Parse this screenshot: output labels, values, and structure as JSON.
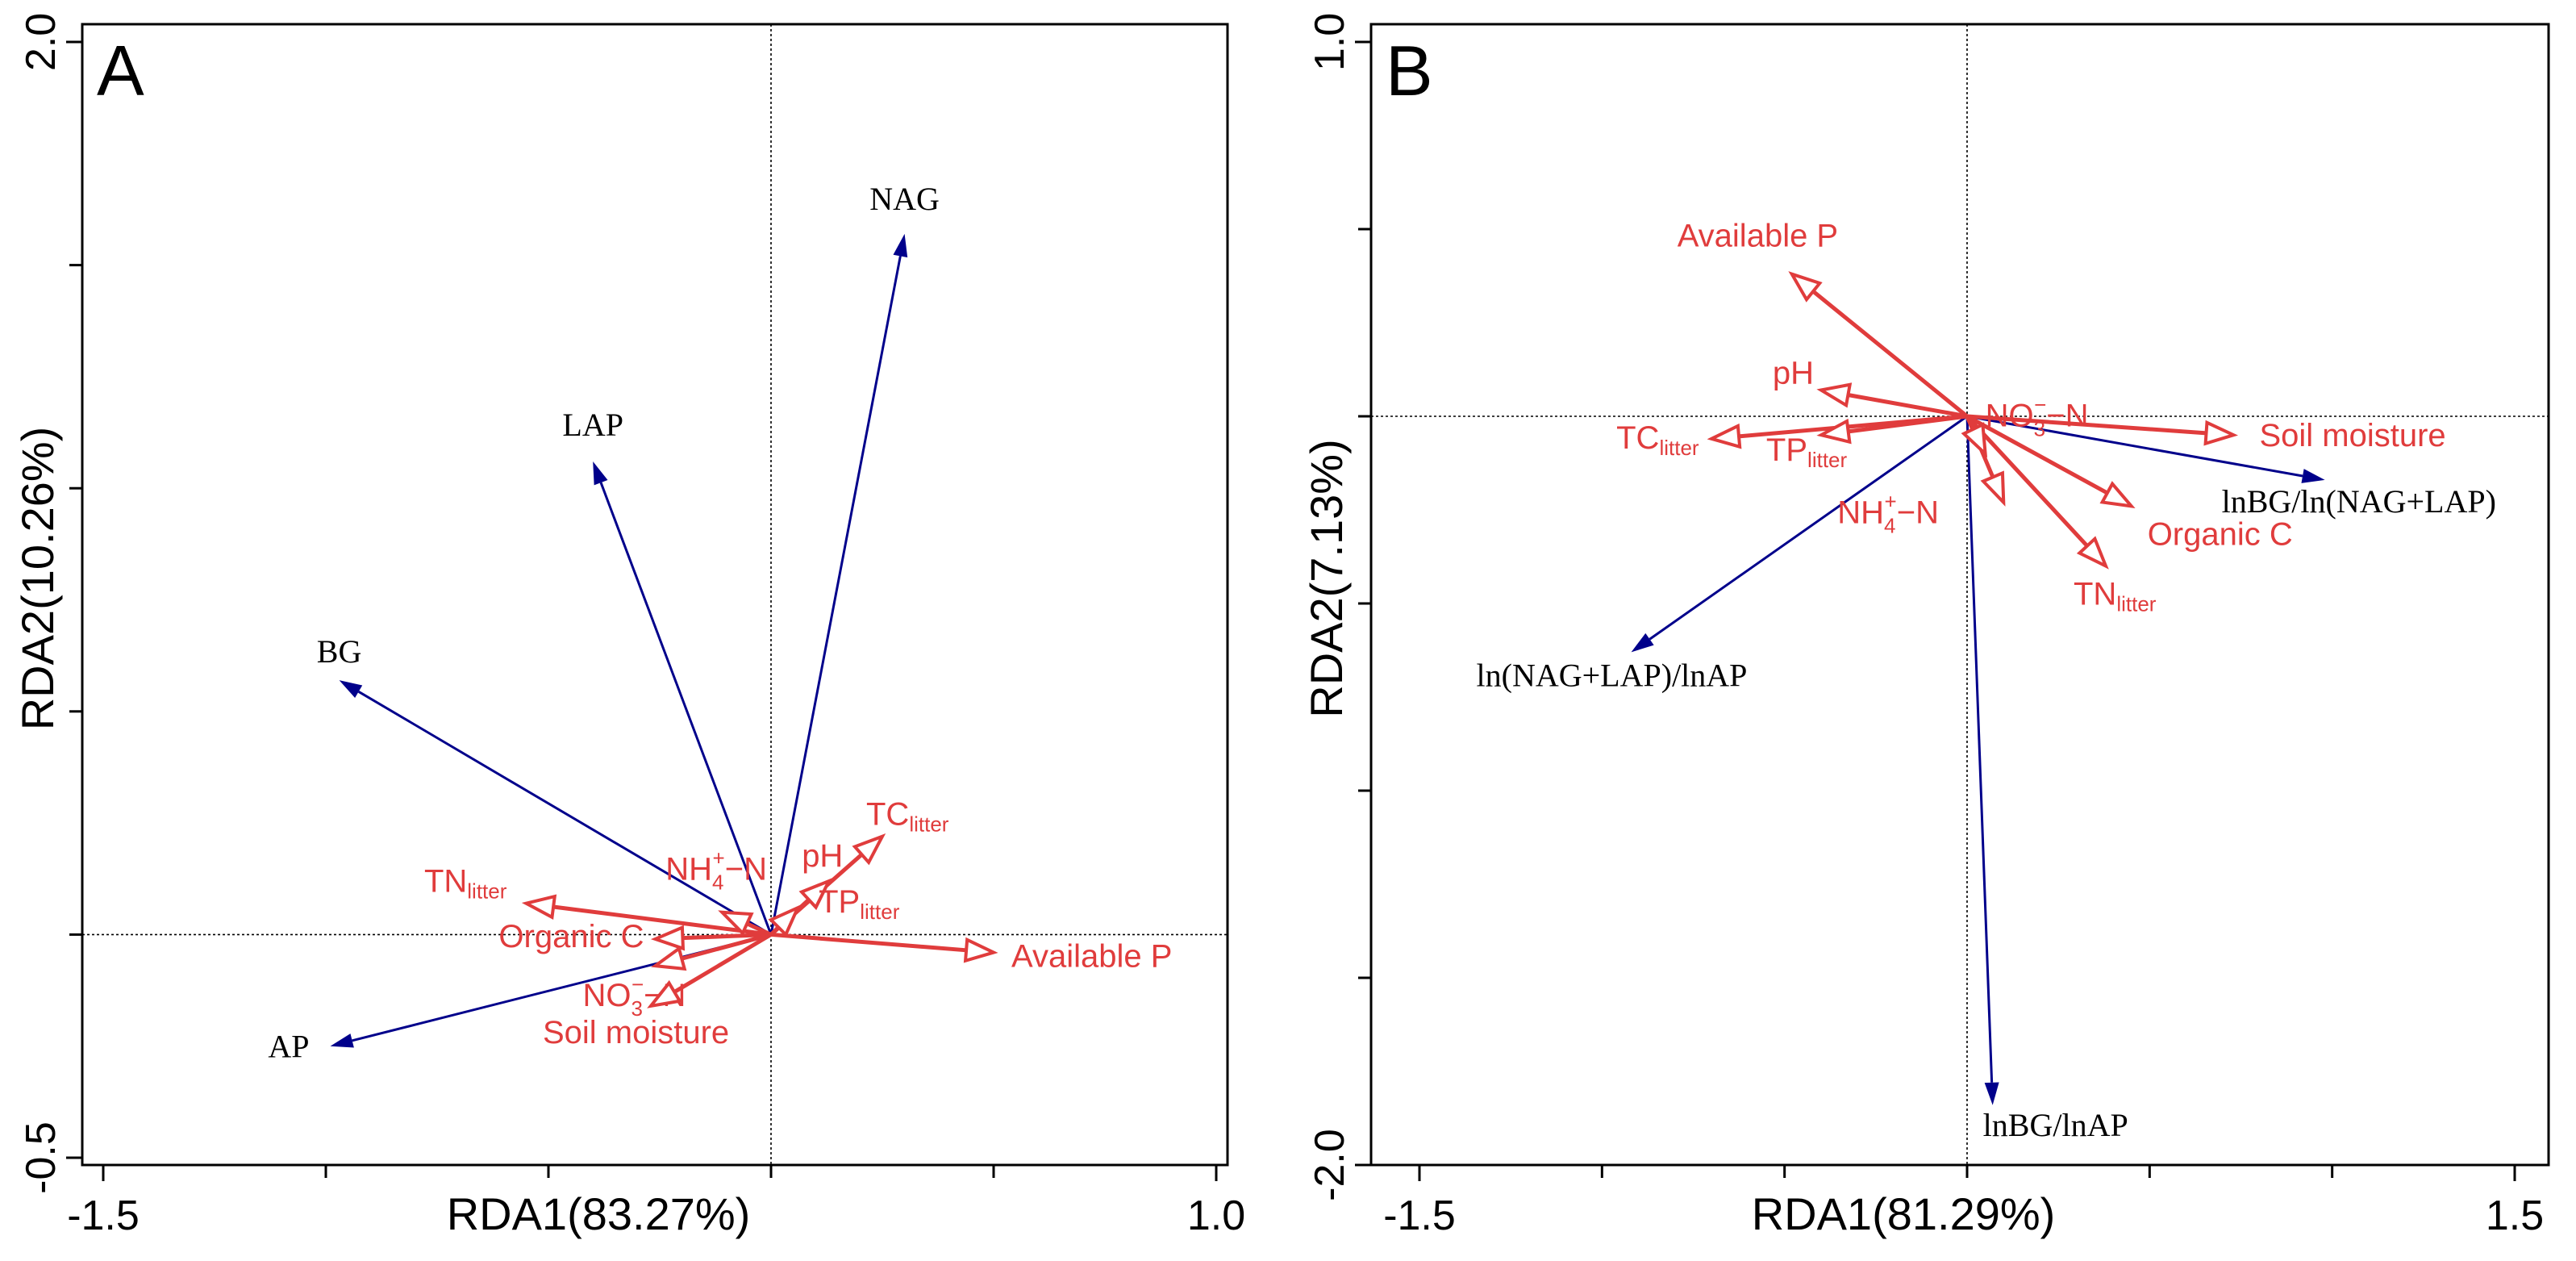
{
  "chart_data": [
    {
      "type": "biplot",
      "panel_label": "A",
      "xlabel": "RDA1(83.27%)",
      "ylabel": "RDA2(10.26%)",
      "xlim": [
        -1.5,
        1.0
      ],
      "ylim": [
        -0.5,
        2.0
      ],
      "x_tick_labels": [
        "-1.5",
        "1.0"
      ],
      "y_tick_labels": [
        "-0.5",
        "2.0"
      ],
      "colors": {
        "response": "#00008B",
        "explanatory": "#E03C3C"
      },
      "response_vectors": [
        {
          "name": "NAG",
          "x": 0.3,
          "y": 1.57
        },
        {
          "name": "LAP",
          "x": -0.4,
          "y": 1.06
        },
        {
          "name": "BG",
          "x": -0.97,
          "y": 0.57
        },
        {
          "name": "AP",
          "x": -0.99,
          "y": -0.25
        }
      ],
      "explanatory_vectors": [
        {
          "name": "TC",
          "sub": "litter",
          "x": 0.25,
          "y": 0.22
        },
        {
          "name": "pH",
          "sub": "",
          "x": 0.13,
          "y": 0.12
        },
        {
          "name": "TP",
          "sub": "litter",
          "x": 0.06,
          "y": 0.06
        },
        {
          "name": "Available P",
          "sub": "",
          "x": 0.5,
          "y": -0.04
        },
        {
          "name": "TN",
          "sub": "litter",
          "x": -0.55,
          "y": 0.07
        },
        {
          "name": "Organic C",
          "sub": "",
          "x": -0.26,
          "y": -0.01
        },
        {
          "name": "NH4+-N",
          "sub": "",
          "x": -0.11,
          "y": 0.05
        },
        {
          "name": "NO3--N",
          "sub": "",
          "x": -0.26,
          "y": -0.07
        },
        {
          "name": "Soil moisture",
          "sub": "",
          "x": -0.27,
          "y": -0.16
        }
      ]
    },
    {
      "type": "biplot",
      "panel_label": "B",
      "xlabel": "RDA1(81.29%)",
      "ylabel": "RDA2(7.13%)",
      "xlim": [
        -1.5,
        1.5
      ],
      "ylim": [
        -2.0,
        1.0
      ],
      "x_tick_labels": [
        "-1.5",
        "1.5"
      ],
      "y_tick_labels": [
        "-2.0",
        "1.0"
      ],
      "colors": {
        "response": "#00008B",
        "explanatory": "#E03C3C"
      },
      "response_vectors": [
        {
          "name": "lnBG/ln(NAG+LAP)",
          "x": 0.98,
          "y": -0.17
        },
        {
          "name": "ln(NAG+LAP)/lnAP",
          "x": -0.92,
          "y": -0.63
        },
        {
          "name": "lnBG/lnAP",
          "x": 0.07,
          "y": -1.84
        }
      ],
      "explanatory_vectors": [
        {
          "name": "Available P",
          "sub": "",
          "x": -0.48,
          "y": 0.38
        },
        {
          "name": "pH",
          "sub": "",
          "x": -0.4,
          "y": 0.07
        },
        {
          "name": "TC",
          "sub": "litter",
          "x": -0.7,
          "y": -0.06
        },
        {
          "name": "TP",
          "sub": "litter",
          "x": -0.4,
          "y": -0.05
        },
        {
          "name": "Soil moisture",
          "sub": "",
          "x": 0.73,
          "y": -0.05
        },
        {
          "name": "Organic C",
          "sub": "",
          "x": 0.45,
          "y": -0.24
        },
        {
          "name": "TN",
          "sub": "litter",
          "x": 0.38,
          "y": -0.4
        },
        {
          "name": "NH4+-N",
          "sub": "",
          "x": 0.1,
          "y": -0.23
        },
        {
          "name": "NO3--N",
          "sub": "",
          "x": 0.05,
          "y": -0.1
        }
      ]
    }
  ]
}
